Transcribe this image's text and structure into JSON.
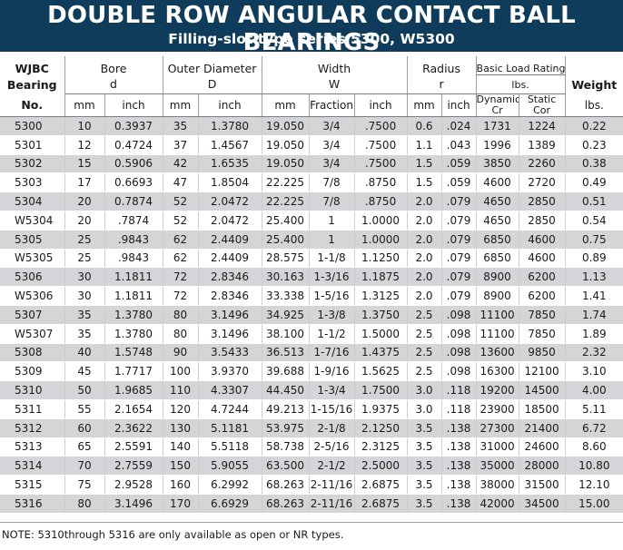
{
  "title": "DOUBLE ROW ANGULAR CONTACT BALL BEARINGS",
  "subtitle": "Filling-slot type series 5300, W5300",
  "header": {
    "col1": [
      "WJBC",
      "Bearing",
      "No."
    ],
    "bore": {
      "label": "Bore",
      "symbol": "d",
      "mm": "mm",
      "inch": "inch"
    },
    "outer": {
      "label": "Outer Diameter",
      "symbol": "D",
      "mm": "mm",
      "inch": "inch"
    },
    "width": {
      "label": "Width",
      "symbol": "W",
      "mm": "mm",
      "fraction": "Fraction",
      "inch": "inch"
    },
    "radius": {
      "label": "Radius",
      "symbol": "r",
      "mm": "mm",
      "inch": "inch"
    },
    "load": {
      "label": "Basic Load Rating",
      "unit": "lbs.",
      "dynamic": "Dynamic",
      "static": "Static",
      "cr": "Cr",
      "cor": "Cor"
    },
    "weight": {
      "label": "Weight",
      "unit": "lbs."
    }
  },
  "rows": [
    [
      "5300",
      "10",
      "0.3937",
      "35",
      "1.3780",
      "19.050",
      "3/4",
      ".7500",
      "0.6",
      ".024",
      "1731",
      "1224",
      "0.22"
    ],
    [
      "5301",
      "12",
      "0.4724",
      "37",
      "1.4567",
      "19.050",
      "3/4",
      ".7500",
      "1.1",
      ".043",
      "1996",
      "1389",
      "0.23"
    ],
    [
      "5302",
      "15",
      "0.5906",
      "42",
      "1.6535",
      "19.050",
      "3/4",
      ".7500",
      "1.5",
      ".059",
      "3850",
      "2260",
      "0.38"
    ],
    [
      "5303",
      "17",
      "0.6693",
      "47",
      "1.8504",
      "22.225",
      "7/8",
      ".8750",
      "1.5",
      ".059",
      "4600",
      "2720",
      "0.49"
    ],
    [
      "5304",
      "20",
      "0.7874",
      "52",
      "2.0472",
      "22.225",
      "7/8",
      ".8750",
      "2.0",
      ".079",
      "4650",
      "2850",
      "0.51"
    ],
    [
      "W5304",
      "20",
      ".7874",
      "52",
      "2.0472",
      "25.400",
      "1",
      "1.0000",
      "2.0",
      ".079",
      "4650",
      "2850",
      "0.54"
    ],
    [
      "5305",
      "25",
      ".9843",
      "62",
      "2.4409",
      "25.400",
      "1",
      "1.0000",
      "2.0",
      ".079",
      "6850",
      "4600",
      "0.75"
    ],
    [
      "W5305",
      "25",
      ".9843",
      "62",
      "2.4409",
      "28.575",
      "1-1/8",
      "1.1250",
      "2.0",
      ".079",
      "6850",
      "4600",
      "0.89"
    ],
    [
      "5306",
      "30",
      "1.1811",
      "72",
      "2.8346",
      "30.163",
      "1-3/16",
      "1.1875",
      "2.0",
      ".079",
      "8900",
      "6200",
      "1.13"
    ],
    [
      "W5306",
      "30",
      "1.1811",
      "72",
      "2.8346",
      "33.338",
      "1-5/16",
      "1.3125",
      "2.0",
      ".079",
      "8900",
      "6200",
      "1.41"
    ],
    [
      "5307",
      "35",
      "1.3780",
      "80",
      "3.1496",
      "34.925",
      "1-3/8",
      "1.3750",
      "2.5",
      ".098",
      "11100",
      "7850",
      "1.74"
    ],
    [
      "W5307",
      "35",
      "1.3780",
      "80",
      "3.1496",
      "38.100",
      "1-1/2",
      "1.5000",
      "2.5",
      ".098",
      "11100",
      "7850",
      "1.89"
    ],
    [
      "5308",
      "40",
      "1.5748",
      "90",
      "3.5433",
      "36.513",
      "1-7/16",
      "1.4375",
      "2.5",
      ".098",
      "13600",
      "9850",
      "2.32"
    ],
    [
      "5309",
      "45",
      "1.7717",
      "100",
      "3.9370",
      "39.688",
      "1-9/16",
      "1.5625",
      "2.5",
      ".098",
      "16300",
      "12100",
      "3.10"
    ],
    [
      "5310",
      "50",
      "1.9685",
      "110",
      "4.3307",
      "44.450",
      "1-3/4",
      "1.7500",
      "3.0",
      ".118",
      "19200",
      "14500",
      "4.00"
    ],
    [
      "5311",
      "55",
      "2.1654",
      "120",
      "4.7244",
      "49.213",
      "1-15/16",
      "1.9375",
      "3.0",
      ".118",
      "23900",
      "18500",
      "5.11"
    ],
    [
      "5312",
      "60",
      "2.3622",
      "130",
      "5.1181",
      "53.975",
      "2-1/8",
      "2.1250",
      "3.5",
      ".138",
      "27300",
      "21400",
      "6.72"
    ],
    [
      "5313",
      "65",
      "2.5591",
      "140",
      "5.5118",
      "58.738",
      "2-5/16",
      "2.3125",
      "3.5",
      ".138",
      "31000",
      "24600",
      "8.60"
    ],
    [
      "5314",
      "70",
      "2.7559",
      "150",
      "5.9055",
      "63.500",
      "2-1/2",
      "2.5000",
      "3.5",
      ".138",
      "35000",
      "28000",
      "10.80"
    ],
    [
      "5315",
      "75",
      "2.9528",
      "160",
      "6.2992",
      "68.263",
      "2-11/16",
      "2.6875",
      "3.5",
      ".138",
      "38000",
      "31500",
      "12.10"
    ],
    [
      "5316",
      "80",
      "3.1496",
      "170",
      "6.6929",
      "68.263",
      "2-11/16",
      "2.6875",
      "3.5",
      ".138",
      "42000",
      "34500",
      "15.00"
    ]
  ],
  "note": "NOTE: 5310through 5316 are only available as open or NR types.",
  "colors": {
    "banner": "#0e3c5a",
    "stripe": "#d4d5d7"
  }
}
